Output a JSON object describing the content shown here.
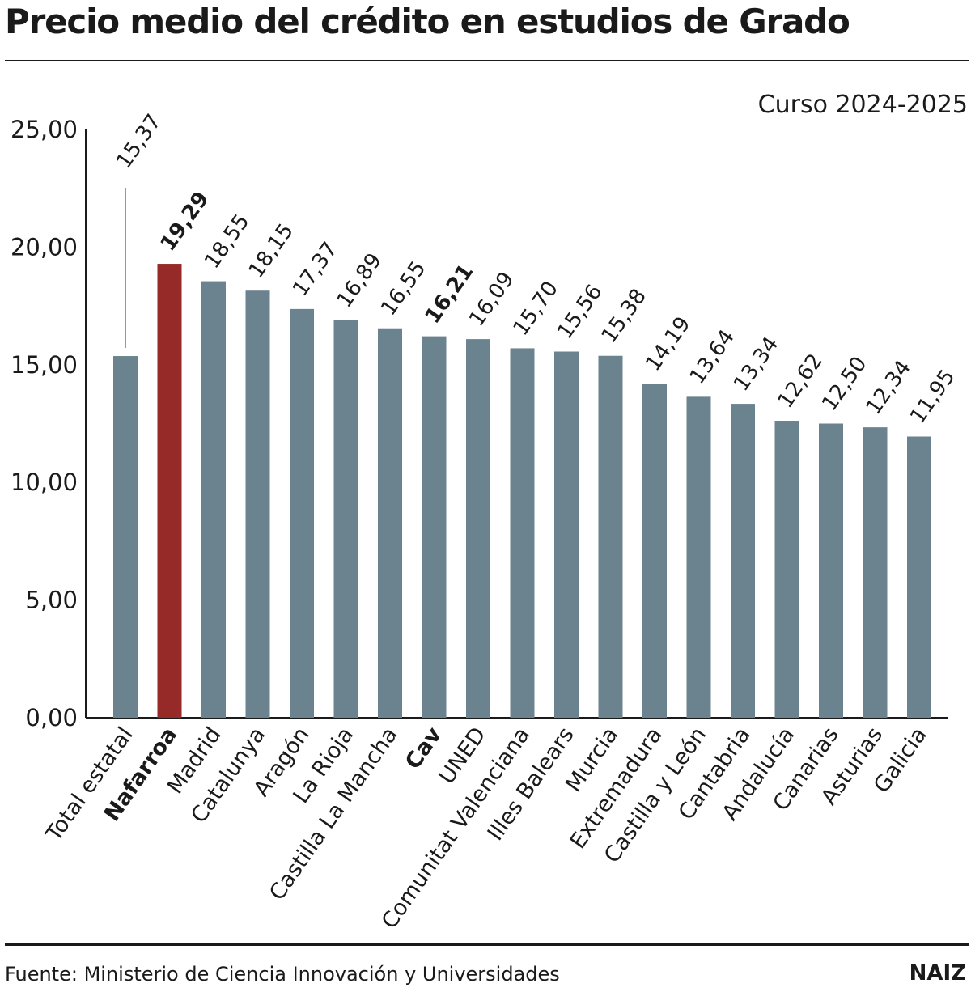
{
  "title": "Precio medio del crédito en estudios de Grado",
  "subtitle": "Curso 2024-2025",
  "footer": {
    "source": "Fuente: Ministerio de Ciencia Innovación y Universidades",
    "brand": "NAIZ"
  },
  "colors": {
    "bar": "#6b838e",
    "highlight": "#952a29",
    "text": "#1a1a1a"
  },
  "chart_data": {
    "type": "bar",
    "title": "Precio medio del crédito en estudios de Grado",
    "subtitle": "Curso 2024-2025",
    "xlabel": "",
    "ylabel": "",
    "ylim": [
      0,
      25
    ],
    "yticks": [
      0,
      5,
      10,
      15,
      20,
      25
    ],
    "ytick_labels": [
      "0,00",
      "5,00",
      "10,00",
      "15,00",
      "20,00",
      "25,00"
    ],
    "categories": [
      "Total estatal",
      "Nafarroa",
      "Madrid",
      "Catalunya",
      "Aragón",
      "La Rioja",
      "Castilla La Mancha",
      "Cav",
      "UNED",
      "Comunitat Valenciana",
      "Illes Balears",
      "Murcia",
      "Extremadura",
      "Castilla y León",
      "Cantabria",
      "Andalucía",
      "Canarias",
      "Asturias",
      "Galicia"
    ],
    "values": [
      15.37,
      19.29,
      18.55,
      18.15,
      17.37,
      16.89,
      16.55,
      16.21,
      16.09,
      15.7,
      15.56,
      15.38,
      14.19,
      13.64,
      13.34,
      12.62,
      12.5,
      12.34,
      11.95
    ],
    "value_labels": [
      "15,37",
      "19,29",
      "18,55",
      "18,15",
      "17,37",
      "16,89",
      "16,55",
      "16,21",
      "16,09",
      "15,70",
      "15,56",
      "15,38",
      "14,19",
      "13,64",
      "13,34",
      "12,62",
      "12,50",
      "12,34",
      "11,95"
    ],
    "highlighted": [
      "Nafarroa"
    ],
    "bold": [
      "Nafarroa",
      "Cav"
    ],
    "grid": false,
    "legend": "none"
  }
}
